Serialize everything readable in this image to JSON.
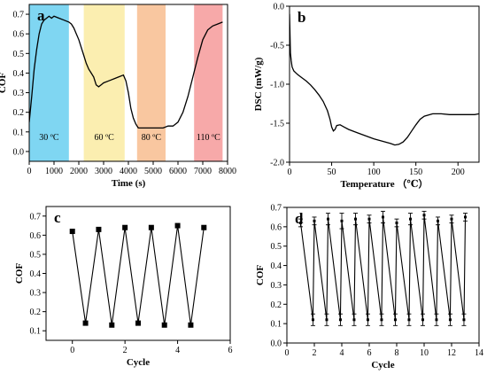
{
  "chart_data": [
    {
      "panel": "a",
      "type": "line",
      "panel_label": "a",
      "xlabel": "Time (s)",
      "ylabel": "COF",
      "xlim": [
        0,
        8000
      ],
      "ylim": [
        -0.05,
        0.75
      ],
      "xticks": [
        0,
        1000,
        2000,
        3000,
        4000,
        5000,
        6000,
        7000,
        8000
      ],
      "yticks": [
        0.0,
        0.1,
        0.2,
        0.3,
        0.4,
        0.5,
        0.6,
        0.7
      ],
      "bands": [
        {
          "label": "30 ºC",
          "x0": 0,
          "x1": 1600,
          "color": "#7fd6f2"
        },
        {
          "label": "60 ºC",
          "x0": 2200,
          "x1": 3850,
          "color": "#fbeeb0"
        },
        {
          "label": "80 ºC",
          "x0": 4350,
          "x1": 5500,
          "color": "#f9c7a0"
        },
        {
          "label": "110 ºC",
          "x0": 6650,
          "x1": 7800,
          "color": "#f7a9a9"
        }
      ],
      "x": [
        0,
        100,
        200,
        300,
        400,
        500,
        600,
        700,
        800,
        900,
        1000,
        1200,
        1400,
        1600,
        1700,
        1800,
        1900,
        2000,
        2100,
        2200,
        2300,
        2400,
        2500,
        2600,
        2700,
        2800,
        2900,
        3000,
        3200,
        3400,
        3600,
        3800,
        3900,
        4000,
        4100,
        4200,
        4300,
        4400,
        4500,
        4600,
        4800,
        5000,
        5200,
        5400,
        5600,
        5800,
        6000,
        6200,
        6400,
        6600,
        6800,
        7000,
        7200,
        7400,
        7600,
        7800
      ],
      "y": [
        0.15,
        0.28,
        0.42,
        0.52,
        0.6,
        0.65,
        0.67,
        0.68,
        0.69,
        0.68,
        0.69,
        0.68,
        0.67,
        0.66,
        0.65,
        0.63,
        0.6,
        0.57,
        0.53,
        0.49,
        0.45,
        0.42,
        0.4,
        0.38,
        0.34,
        0.33,
        0.34,
        0.35,
        0.36,
        0.37,
        0.38,
        0.39,
        0.36,
        0.3,
        0.22,
        0.17,
        0.14,
        0.12,
        0.12,
        0.12,
        0.12,
        0.12,
        0.12,
        0.12,
        0.13,
        0.13,
        0.15,
        0.2,
        0.28,
        0.38,
        0.48,
        0.57,
        0.62,
        0.64,
        0.65,
        0.66
      ]
    },
    {
      "panel": "b",
      "type": "line",
      "panel_label": "b",
      "xlabel": "Temperature （℃）",
      "ylabel": "DSC (mW/g)",
      "xlim": [
        0,
        225
      ],
      "ylim": [
        -2.0,
        0.0
      ],
      "xticks": [
        0,
        50,
        100,
        150,
        200
      ],
      "yticks": [
        0.0,
        -0.5,
        -1.0,
        -1.5,
        -2.0
      ],
      "ytick_labels": [
        "0.0",
        "-0.5",
        "-1.0",
        "-1.5",
        "-2.0"
      ],
      "x": [
        0,
        0.5,
        1,
        2,
        3,
        5,
        8,
        10,
        15,
        20,
        25,
        30,
        35,
        40,
        45,
        48,
        50,
        52,
        54,
        56,
        60,
        65,
        70,
        80,
        90,
        100,
        110,
        120,
        125,
        130,
        135,
        140,
        145,
        150,
        155,
        160,
        170,
        180,
        190,
        200,
        210,
        220,
        225
      ],
      "y": [
        -0.1,
        -0.35,
        -0.6,
        -0.7,
        -0.78,
        -0.83,
        -0.86,
        -0.88,
        -0.92,
        -0.96,
        -1.01,
        -1.07,
        -1.14,
        -1.22,
        -1.34,
        -1.45,
        -1.55,
        -1.6,
        -1.58,
        -1.53,
        -1.52,
        -1.55,
        -1.58,
        -1.62,
        -1.66,
        -1.7,
        -1.73,
        -1.76,
        -1.78,
        -1.77,
        -1.74,
        -1.68,
        -1.6,
        -1.52,
        -1.45,
        -1.41,
        -1.38,
        -1.38,
        -1.39,
        -1.39,
        -1.39,
        -1.39,
        -1.38
      ]
    },
    {
      "panel": "c",
      "type": "line",
      "panel_label": "c",
      "xlabel": "Cycle",
      "ylabel": "COF",
      "xlim": [
        -1,
        6
      ],
      "ylim": [
        0.05,
        0.75
      ],
      "xticks": [
        0,
        2,
        4,
        6
      ],
      "yticks": [
        0.1,
        0.2,
        0.3,
        0.4,
        0.5,
        0.6,
        0.7
      ],
      "x": [
        0,
        0.5,
        1,
        1.5,
        2,
        2.5,
        3,
        3.5,
        4,
        4.5,
        5
      ],
      "y": [
        0.62,
        0.14,
        0.63,
        0.13,
        0.64,
        0.14,
        0.64,
        0.13,
        0.65,
        0.13,
        0.64
      ]
    },
    {
      "panel": "d",
      "type": "line",
      "panel_label": "d",
      "xlabel": "Cycle",
      "ylabel": "COF",
      "xlim": [
        0,
        14
      ],
      "ylim": [
        0.0,
        0.7
      ],
      "xticks": [
        0,
        2,
        4,
        6,
        8,
        10,
        12,
        14
      ],
      "yticks": [
        0.0,
        0.1,
        0.2,
        0.3,
        0.4,
        0.5,
        0.6,
        0.7
      ],
      "x": [
        1,
        1.9,
        2,
        2.9,
        3,
        3.9,
        4,
        4.9,
        5,
        5.9,
        6,
        6.9,
        7,
        7.9,
        8,
        8.9,
        9,
        9.9,
        10,
        10.9,
        11,
        11.9,
        12,
        12.9,
        13
      ],
      "y": [
        0.62,
        0.12,
        0.63,
        0.12,
        0.64,
        0.12,
        0.63,
        0.12,
        0.64,
        0.12,
        0.64,
        0.12,
        0.65,
        0.12,
        0.62,
        0.12,
        0.64,
        0.12,
        0.66,
        0.12,
        0.63,
        0.12,
        0.64,
        0.12,
        0.65
      ],
      "error": [
        0.02,
        0.03,
        0.02,
        0.03,
        0.03,
        0.03,
        0.04,
        0.03,
        0.03,
        0.03,
        0.02,
        0.03,
        0.03,
        0.03,
        0.02,
        0.03,
        0.03,
        0.03,
        0.02,
        0.03,
        0.02,
        0.03,
        0.02,
        0.03,
        0.02
      ]
    }
  ]
}
